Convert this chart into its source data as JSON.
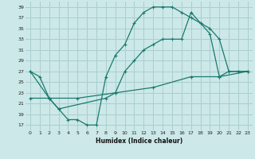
{
  "xlabel": "Humidex (Indice chaleur)",
  "bg_color": "#cce8e8",
  "grid_color": "#aacece",
  "line_color": "#1a7a6e",
  "xlim": [
    -0.5,
    23.5
  ],
  "ylim": [
    16,
    40
  ],
  "yticks": [
    17,
    19,
    21,
    23,
    25,
    27,
    29,
    31,
    33,
    35,
    37,
    39
  ],
  "xticks": [
    0,
    1,
    2,
    3,
    4,
    5,
    6,
    7,
    8,
    9,
    10,
    11,
    12,
    13,
    14,
    15,
    16,
    17,
    18,
    19,
    20,
    21,
    22,
    23
  ],
  "line1_x": [
    0,
    1,
    2,
    3,
    4,
    5,
    6,
    7,
    8,
    9,
    10,
    11,
    12,
    13,
    14,
    15,
    16,
    17,
    18,
    19,
    20,
    21,
    22,
    23
  ],
  "line1_y": [
    27,
    26,
    22,
    20,
    18,
    18,
    17,
    17,
    26,
    30,
    32,
    36,
    38,
    39,
    39,
    39,
    38,
    37,
    36,
    35,
    33,
    27,
    27,
    27
  ],
  "line2_x": [
    0,
    2,
    3,
    8,
    9,
    10,
    11,
    12,
    13,
    14,
    15,
    16,
    17,
    18,
    19,
    20,
    21,
    22,
    23
  ],
  "line2_y": [
    27,
    22,
    20,
    22,
    23,
    27,
    29,
    31,
    32,
    33,
    33,
    33,
    38,
    36,
    34,
    26,
    27,
    27,
    27
  ],
  "line3_x": [
    0,
    2,
    5,
    9,
    13,
    17,
    20,
    23
  ],
  "line3_y": [
    22,
    22,
    22,
    23,
    24,
    26,
    26,
    27
  ]
}
